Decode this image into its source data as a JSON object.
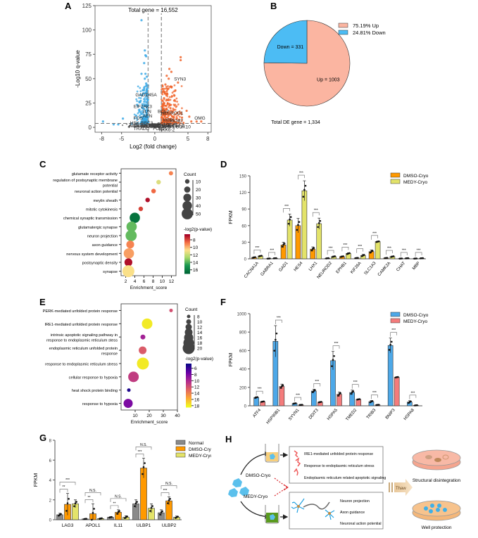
{
  "panel_labels": {
    "A": "A",
    "B": "B",
    "C": "C",
    "D": "D",
    "E": "E",
    "F": "F",
    "G": "G",
    "H": "H"
  },
  "chart_data": [
    {
      "id": "A",
      "type": "scatter",
      "title": "Total gene = 16,552",
      "xlabel": "Log2 (fold change)",
      "ylabel": "-Log10 q-value",
      "xlim": [
        -9,
        8.5
      ],
      "ylim": [
        -5,
        125
      ],
      "xticks": [
        -8,
        -5,
        0,
        5,
        8
      ],
      "yticks": [
        0,
        25,
        50,
        75,
        100,
        125
      ],
      "thresholds": {
        "log2fc": [
          -1,
          1
        ],
        "neglog10q": 4
      },
      "colors": {
        "down": "#3ba9e6",
        "up": "#f0652d",
        "ns": "#444444"
      },
      "labeled_genes": [
        {
          "name": "SYN3",
          "x": 3.8,
          "y": 48,
          "side": "up"
        },
        {
          "name": "GADD45A",
          "x": -1.3,
          "y": 32,
          "side": "down"
        },
        {
          "name": "EIF2AK3",
          "x": -1.8,
          "y": 20,
          "side": "down"
        },
        {
          "name": "JUN",
          "x": -1.2,
          "y": 15,
          "side": "down"
        },
        {
          "name": "BCL2",
          "x": 1.3,
          "y": 15,
          "side": "up"
        },
        {
          "name": "NEUROD1",
          "x": 2.6,
          "y": 13,
          "side": "up"
        },
        {
          "name": "OMG",
          "x": 6.8,
          "y": 8,
          "side": "up"
        },
        {
          "name": "FOS",
          "x": -2.5,
          "y": 8,
          "side": "down"
        },
        {
          "name": "AEN",
          "x": -1.1,
          "y": 10,
          "side": "down"
        },
        {
          "name": "MBP",
          "x": 2.0,
          "y": 6,
          "side": "up"
        },
        {
          "name": "MOB7",
          "x": 3.3,
          "y": 5,
          "side": "up"
        },
        {
          "name": "HSK-BBC3",
          "x": -2.0,
          "y": 3,
          "side": "down"
        },
        {
          "name": "RELN",
          "x": 1.3,
          "y": 2,
          "side": "up"
        },
        {
          "name": "GSX1",
          "x": 2.6,
          "y": 1,
          "side": "up"
        },
        {
          "name": "SOX10",
          "x": 4.3,
          "y": -1,
          "side": "up"
        },
        {
          "name": "TRADD",
          "x": -2.0,
          "y": -3,
          "side": "down"
        },
        {
          "name": "FOXJ1",
          "x": 0.8,
          "y": -3,
          "side": "up"
        },
        {
          "name": "NKX6-2",
          "x": 1.8,
          "y": -4,
          "side": "up"
        }
      ],
      "highlight_points": {
        "down": [
          [
            -2.0,
            110
          ],
          [
            -1.5,
            79
          ],
          [
            -1.4,
            74
          ],
          [
            -1.3,
            73
          ],
          [
            -1.6,
            66
          ],
          [
            -1.4,
            55
          ],
          [
            -2.0,
            55
          ],
          [
            -1.2,
            52
          ],
          [
            -1.5,
            50
          ],
          [
            -1.3,
            45
          ],
          [
            -1.0,
            43
          ],
          [
            -1.8,
            38
          ],
          [
            -1.4,
            35
          ],
          [
            -1.1,
            30
          ],
          [
            -2.2,
            26
          ],
          [
            -7.8,
            6
          ],
          [
            -4.8,
            9
          ],
          [
            -3.5,
            4
          ],
          [
            -2.8,
            12
          ],
          [
            -2.3,
            18
          ],
          [
            -1.6,
            22
          ],
          [
            -1.2,
            26
          ],
          [
            -1.9,
            14
          ],
          [
            -1.3,
            8
          ],
          [
            -1.0,
            6
          ],
          [
            -5.5,
            3
          ],
          [
            -6.2,
            3
          ]
        ],
        "up": [
          [
            3.9,
            72
          ],
          [
            3.9,
            69
          ],
          [
            2.2,
            60
          ],
          [
            2.5,
            57
          ],
          [
            1.8,
            53
          ],
          [
            2.1,
            50
          ],
          [
            3.5,
            46
          ],
          [
            1.6,
            44
          ],
          [
            2.4,
            42
          ],
          [
            1.8,
            40
          ],
          [
            1.5,
            36
          ],
          [
            3.1,
            38
          ],
          [
            1.9,
            34
          ],
          [
            2.6,
            32
          ],
          [
            1.4,
            30
          ],
          [
            3.0,
            28
          ],
          [
            4.8,
            17
          ],
          [
            5.2,
            11
          ],
          [
            6.3,
            6
          ],
          [
            7.0,
            6
          ],
          [
            2.2,
            24
          ],
          [
            1.7,
            22
          ],
          [
            3.4,
            15
          ],
          [
            2.9,
            18
          ],
          [
            1.2,
            18
          ],
          [
            4.1,
            10
          ],
          [
            5.5,
            6
          ]
        ]
      }
    },
    {
      "id": "B",
      "type": "pie",
      "slices": [
        {
          "label": "Up",
          "value": 1003,
          "percent": "75.19%",
          "color": "#fbb5a1",
          "text": "Up = 1003"
        },
        {
          "label": "Down",
          "value": 331,
          "percent": "24.81%",
          "color": "#4cbcf4",
          "text": "Down = 331"
        }
      ],
      "legend": [
        {
          "pct": "75.19%",
          "name": "Up"
        },
        {
          "pct": "24.81%",
          "name": "Down"
        }
      ],
      "legend_position": "top-right",
      "footer": "Total DE gene = 1,334"
    },
    {
      "id": "C",
      "type": "scatter",
      "subtype": "bubble",
      "xlabel": "Enrichment_score",
      "xlim": [
        1,
        13
      ],
      "xticks": [
        2,
        4,
        6,
        8,
        10,
        12
      ],
      "terms": [
        {
          "term": "glutamate receptor activity",
          "score": 11.9,
          "count": 8,
          "p": 9.0
        },
        {
          "term": "regulation of postsynaptic membrane potential",
          "score": 9.2,
          "count": 10,
          "p": 11.5
        },
        {
          "term": "neuronal action potential",
          "score": 8.1,
          "count": 10,
          "p": 8.5
        },
        {
          "term": "meylin sheath",
          "score": 6.8,
          "count": 10,
          "p": 6.8
        },
        {
          "term": "mitotic cytokinesis",
          "score": 5.3,
          "count": 10,
          "p": 7.8
        },
        {
          "term": "chemical synaptic transmission",
          "score": 4.0,
          "count": 45,
          "p": 16.5
        },
        {
          "term": "glutamatergic synapse",
          "score": 3.3,
          "count": 45,
          "p": 13.8
        },
        {
          "term": "neuron projection",
          "score": 3.2,
          "count": 50,
          "p": 13.8
        },
        {
          "term": "axon guidance",
          "score": 3.0,
          "count": 30,
          "p": 9.0
        },
        {
          "term": "nervous system development",
          "score": 2.7,
          "count": 45,
          "p": 9.5
        },
        {
          "term": "postsynaptic density",
          "score": 2.6,
          "count": 30,
          "p": 6.8
        },
        {
          "term": "synapse",
          "score": 2.6,
          "count": 55,
          "p": 10.8
        }
      ],
      "size_legend": {
        "title": "Count",
        "values": [
          10,
          20,
          30,
          40,
          50
        ]
      },
      "color_legend": {
        "title": "-log2(p-value)",
        "ticks": [
          8,
          10,
          12,
          14,
          16
        ],
        "range": [
          6.5,
          17
        ],
        "colors": [
          "#a50026",
          "#f46d43",
          "#fee08b",
          "#a6d96a",
          "#1a9850",
          "#006837"
        ]
      }
    },
    {
      "id": "D",
      "type": "bar",
      "ylabel": "FPKM",
      "ylim": [
        0,
        150
      ],
      "yticks": [
        0,
        30,
        60,
        90,
        120,
        150
      ],
      "categories": [
        "CACNA1A",
        "GABRA1",
        "GAD1",
        "HES4",
        "LHX1",
        "NEUROD2",
        "EPHB1",
        "KIF26A",
        "SLC1A3",
        "CAMK2A",
        "CHAT",
        "MBP"
      ],
      "series": [
        {
          "name": "DMSO-Cryo",
          "color": "#ff9900",
          "values": [
            2.5,
            0.5,
            25,
            60,
            17.5,
            1,
            4,
            1.5,
            13,
            1.5,
            0.5,
            0.5
          ],
          "err": [
            1,
            0.3,
            5,
            13,
            4,
            0.5,
            1,
            0.5,
            3,
            0.5,
            0.3,
            0.3
          ]
        },
        {
          "name": "MEDY-Cryo",
          "color": "#e3e36a",
          "values": [
            5,
            1,
            70,
            123,
            63.5,
            4,
            9.5,
            6,
            31,
            4,
            1,
            1
          ],
          "err": [
            1,
            0.3,
            11,
            18,
            10,
            1,
            1.5,
            2,
            1,
            1,
            0.3,
            0.3
          ]
        }
      ],
      "significance": [
        "***",
        "***",
        "***",
        "***",
        "***",
        "***",
        "***",
        "***",
        "***",
        "***",
        "***",
        "***"
      ],
      "legend_position": "top-right"
    },
    {
      "id": "E",
      "type": "scatter",
      "subtype": "bubble",
      "xlabel": "Enrichment_score",
      "xlim": [
        0,
        40
      ],
      "xticks": [
        10,
        20,
        30,
        40
      ],
      "terms": [
        {
          "term": "PERK-mediated unfolded protein response",
          "score": 35.5,
          "count": 8,
          "p": 12
        },
        {
          "term": "IRE1-mediated unfolded protein response",
          "score": 18.5,
          "count": 18,
          "p": 18
        },
        {
          "term": "intrinsic apoptotic signaling pathway in response to endoplasmic reticulum stess",
          "score": 15.5,
          "count": 10,
          "p": 9.5
        },
        {
          "term": "endoplasmic reticulum unfolded protein response",
          "score": 15.3,
          "count": 14,
          "p": 12.5
        },
        {
          "term": "response to endoplasmic reticulum stress",
          "score": 15.5,
          "count": 20,
          "p": 18
        },
        {
          "term": "cellular response to hypoxia",
          "score": 8.8,
          "count": 18,
          "p": 11
        },
        {
          "term": "heat shock protein binding",
          "score": 5.5,
          "count": 8,
          "p": 5
        },
        {
          "term": "response to hypoxia",
          "score": 5.0,
          "count": 16,
          "p": 8
        }
      ],
      "size_legend": {
        "title": "Count",
        "values": [
          8,
          10,
          12,
          14,
          16,
          18,
          20
        ]
      },
      "color_legend": {
        "title": "-log2(p-value)",
        "ticks": [
          6,
          8,
          10,
          12,
          14,
          16,
          18
        ],
        "range": [
          4.5,
          18.5
        ],
        "colors": [
          "#0d0887",
          "#6a00a8",
          "#b12a90",
          "#e16462",
          "#fca636",
          "#f0f921"
        ]
      }
    },
    {
      "id": "F",
      "type": "bar",
      "ylabel": "FPKM",
      "ylim": [
        0,
        1000
      ],
      "yticks": [
        0,
        200,
        400,
        600,
        800,
        1000
      ],
      "categories": [
        "ATF4",
        "HSP90B1",
        "SYVN1",
        "DDIT3",
        "HSPA5",
        "TMED2",
        "TRIB3",
        "BNIP3",
        "HSPA8"
      ],
      "series": [
        {
          "name": "DMSO-Cryo",
          "color": "#4da8e8",
          "values": [
            90,
            700,
            25,
            160,
            490,
            145,
            45,
            655,
            40
          ],
          "err": [
            8,
            170,
            5,
            20,
            100,
            25,
            12,
            80,
            15
          ]
        },
        {
          "name": "MEDY-Cryo",
          "color": "#f47c7c",
          "values": [
            45,
            210,
            10,
            40,
            125,
            70,
            10,
            310,
            5
          ],
          "err": [
            5,
            25,
            2,
            5,
            25,
            5,
            3,
            5,
            2
          ]
        }
      ],
      "significance": [
        "***",
        "***",
        "***",
        "***",
        "***",
        "***",
        "***",
        "***",
        "***"
      ],
      "legend_position": "top-right"
    },
    {
      "id": "G",
      "type": "bar",
      "ylabel": "FPKM",
      "ylim": [
        0,
        8
      ],
      "yticks": [
        0,
        2,
        4,
        6,
        8
      ],
      "categories": [
        "LAG3",
        "APOL1",
        "IL11",
        "ULBP1",
        "ULBP2"
      ],
      "series": [
        {
          "name": "Normal",
          "color": "#8a8a8a",
          "values": [
            0.5,
            0.08,
            0.25,
            1.6,
            0.7
          ],
          "err": [
            0.15,
            0.03,
            0.05,
            0.4,
            0.3
          ]
        },
        {
          "name": "DMSO-Cryo",
          "color": "#ff9900",
          "values": [
            1.55,
            0.6,
            0.75,
            5.2,
            1.9
          ],
          "err": [
            1.1,
            1.0,
            0.25,
            1.0,
            0.4
          ]
        },
        {
          "name": "MEDY-Cryo",
          "color": "#e3e36a",
          "values": [
            1.6,
            0.12,
            0.25,
            1.15,
            0.25
          ],
          "err": [
            0.4,
            0.05,
            0.15,
            0.45,
            0.12
          ]
        }
      ],
      "significance": [
        {
          "pair": "Normal-DMSO",
          "labels": [
            "**",
            "**",
            "**",
            "***",
            "***"
          ]
        },
        {
          "pair": "Normal-MEDY",
          "labels": [
            "***",
            "N.S.",
            "N.S.",
            "N.S.",
            "N.S."
          ]
        }
      ],
      "legend_position": "top-right"
    }
  ],
  "diagram_H": {
    "groups": [
      "DMSO-Cryo",
      "MEDY-Cryo"
    ],
    "dmso_box": [
      "IRE1-mediated unfolded protein response",
      "Response to endoplasmic reticulum stress",
      "Endoplasmic reticulum related apoptotic signaling"
    ],
    "medy_box": [
      "Neuron projection",
      "Axon guidance",
      "Neuronal action potential"
    ],
    "thaw_label": "Thaw",
    "outcomes": [
      "Structural disintegration",
      "Well protection"
    ]
  }
}
